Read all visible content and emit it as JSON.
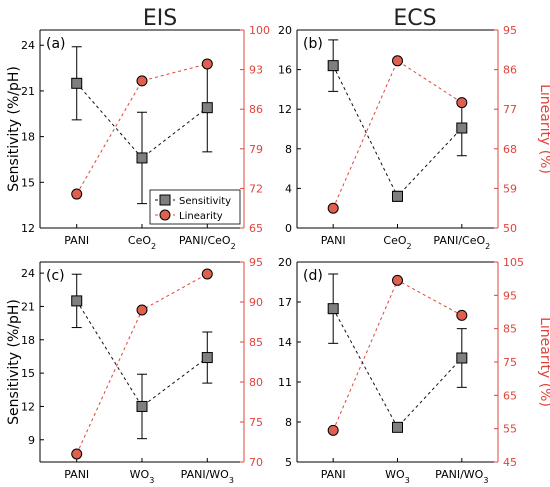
{
  "column_titles": [
    "EIS",
    "ECS"
  ],
  "left_axis_label": "Sensitivity (%/pH)",
  "right_axis_label": "Linearity (%)",
  "legend": {
    "sensitivity": "Sensitivity",
    "linearity": "Linearity"
  },
  "colors": {
    "sensitivity_marker": "#7f7f7f",
    "linearity_marker": "#e06050",
    "sensitivity_line": "#111111",
    "linearity_line": "#e0443a",
    "right_axis": "#e0443a"
  },
  "chart_data": [
    {
      "panel": "(a)",
      "type": "line",
      "categories": [
        "PANI",
        "CeO2",
        "PANI/CeO2"
      ],
      "category_labels": [
        {
          "base": "PANI",
          "sub": ""
        },
        {
          "base": "CeO",
          "sub": "2"
        },
        {
          "base": "PANI/CeO",
          "sub": "2"
        }
      ],
      "series": [
        {
          "name": "Sensitivity",
          "axis": "left",
          "values": [
            21.5,
            16.6,
            19.9
          ],
          "err": [
            2.4,
            3.0,
            2.9
          ]
        },
        {
          "name": "Linearity",
          "axis": "right",
          "values": [
            71,
            91,
            94
          ]
        }
      ],
      "ylim": [
        12,
        25
      ],
      "yticks": [
        12,
        15,
        18,
        21,
        24
      ],
      "y2lim": [
        65,
        100
      ],
      "y2ticks": [
        65,
        72,
        79,
        86,
        93,
        100
      ],
      "legend": "bottom-right",
      "grid": false
    },
    {
      "panel": "(b)",
      "type": "line",
      "categories": [
        "PANI",
        "CeO2",
        "PANI/CeO2"
      ],
      "category_labels": [
        {
          "base": "PANI",
          "sub": ""
        },
        {
          "base": "CeO",
          "sub": "2"
        },
        {
          "base": "PANI/CeO",
          "sub": "2"
        }
      ],
      "series": [
        {
          "name": "Sensitivity",
          "axis": "left",
          "values": [
            16.4,
            3.2,
            10.1
          ],
          "err": [
            2.6,
            0.5,
            2.8
          ]
        },
        {
          "name": "Linearity",
          "axis": "right",
          "values": [
            54.5,
            88,
            78.5
          ]
        }
      ],
      "ylim": [
        0,
        20
      ],
      "yticks": [
        0,
        4,
        8,
        12,
        16,
        20
      ],
      "y2lim": [
        50,
        95
      ],
      "y2ticks": [
        50,
        59,
        68,
        77,
        86,
        95
      ],
      "legend": "none",
      "grid": false
    },
    {
      "panel": "(c)",
      "type": "line",
      "categories": [
        "PANI",
        "WO3",
        "PANI/WO3"
      ],
      "category_labels": [
        {
          "base": "PANI",
          "sub": ""
        },
        {
          "base": "WO",
          "sub": "3"
        },
        {
          "base": "PANI/WO",
          "sub": "3"
        }
      ],
      "series": [
        {
          "name": "Sensitivity",
          "axis": "left",
          "values": [
            21.5,
            12.0,
            16.4
          ],
          "err": [
            2.4,
            2.9,
            2.3
          ]
        },
        {
          "name": "Linearity",
          "axis": "right",
          "values": [
            71,
            89,
            93.5
          ]
        }
      ],
      "ylim": [
        7,
        25
      ],
      "yticks": [
        9,
        12,
        15,
        18,
        21,
        24
      ],
      "y2lim": [
        70,
        95
      ],
      "y2ticks": [
        70,
        75,
        80,
        85,
        90,
        95
      ],
      "legend": "none",
      "grid": false
    },
    {
      "panel": "(d)",
      "type": "line",
      "categories": [
        "PANI",
        "WO3",
        "PANI/WO3"
      ],
      "category_labels": [
        {
          "base": "PANI",
          "sub": ""
        },
        {
          "base": "WO",
          "sub": "3"
        },
        {
          "base": "PANI/WO",
          "sub": "3"
        }
      ],
      "series": [
        {
          "name": "Sensitivity",
          "axis": "left",
          "values": [
            16.5,
            7.6,
            12.8
          ],
          "err": [
            2.6,
            0.3,
            2.2
          ]
        },
        {
          "name": "Linearity",
          "axis": "right",
          "values": [
            54.5,
            99.5,
            89
          ]
        }
      ],
      "ylim": [
        5,
        20
      ],
      "yticks": [
        5,
        8,
        11,
        14,
        17,
        20
      ],
      "y2lim": [
        45,
        105
      ],
      "y2ticks": [
        45,
        55,
        65,
        75,
        85,
        95,
        105
      ],
      "legend": "none",
      "grid": false
    }
  ]
}
